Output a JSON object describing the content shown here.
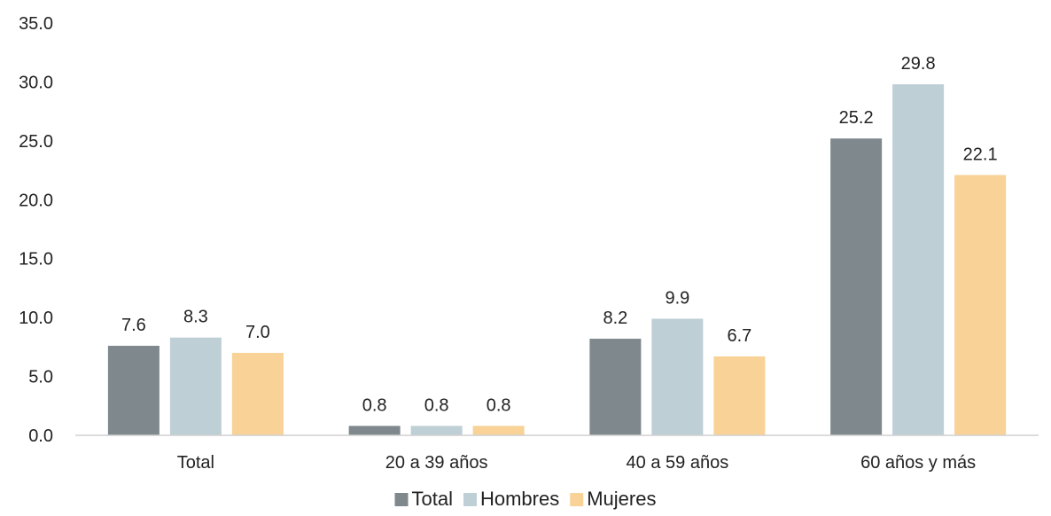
{
  "chart_data": {
    "type": "bar",
    "title": "",
    "xlabel": "",
    "ylabel": "",
    "ylim": [
      0,
      35
    ],
    "yticks": [
      "0.0",
      "5.0",
      "10.0",
      "15.0",
      "20.0",
      "25.0",
      "30.0",
      "35.0"
    ],
    "grid": false,
    "legend_position": "bottom",
    "categories": [
      "Total",
      "20 a 39 años",
      "40 a 59 años",
      "60 años y más"
    ],
    "series": [
      {
        "name": "Total",
        "color": "#7f888d",
        "values": [
          7.6,
          0.8,
          8.2,
          25.2
        ],
        "labels": [
          "7.6",
          "0.8",
          "8.2",
          "25.2"
        ]
      },
      {
        "name": "Hombres",
        "color": "#bfcfd6",
        "values": [
          8.3,
          0.8,
          9.9,
          29.8
        ],
        "labels": [
          "8.3",
          "0.8",
          "9.9",
          "29.8"
        ]
      },
      {
        "name": "Mujeres",
        "color": "#f8d296",
        "values": [
          7.0,
          0.8,
          6.7,
          22.1
        ],
        "labels": [
          "7.0",
          "0.8",
          "6.7",
          "22.1"
        ]
      }
    ]
  }
}
